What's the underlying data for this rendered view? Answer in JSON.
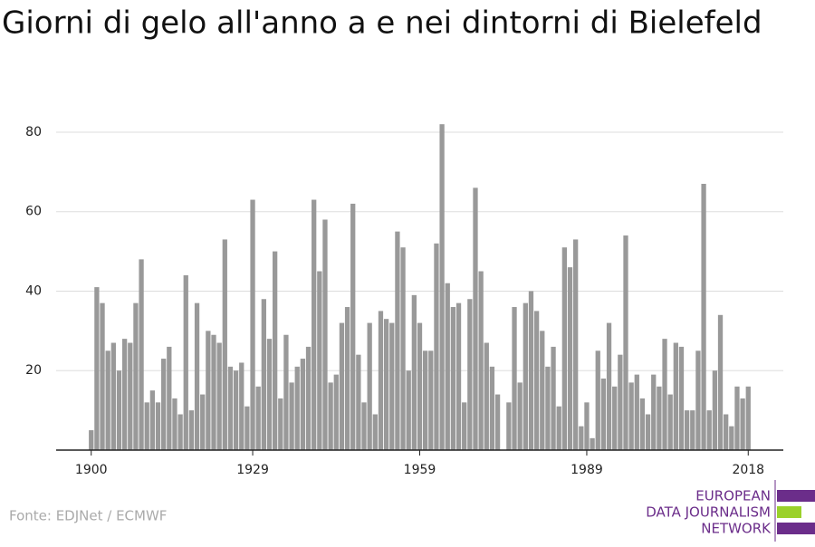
{
  "chart_data": {
    "type": "bar",
    "title": "Giorni di gelo all'anno a e nei dintorni di Bielefeld",
    "source": "Fonte: EDJNet / ECMWF",
    "logo": [
      "EUROPEAN",
      "DATA JOURNALISM",
      "NETWORK"
    ],
    "color": "#999999",
    "x": [
      1900,
      1901,
      1902,
      1903,
      1904,
      1905,
      1906,
      1907,
      1908,
      1909,
      1910,
      1911,
      1912,
      1913,
      1914,
      1915,
      1916,
      1917,
      1918,
      1919,
      1920,
      1921,
      1922,
      1923,
      1924,
      1925,
      1926,
      1927,
      1928,
      1929,
      1930,
      1931,
      1932,
      1933,
      1934,
      1935,
      1936,
      1937,
      1938,
      1939,
      1940,
      1941,
      1942,
      1943,
      1944,
      1945,
      1946,
      1947,
      1948,
      1949,
      1950,
      1951,
      1952,
      1953,
      1954,
      1955,
      1956,
      1957,
      1958,
      1959,
      1960,
      1961,
      1962,
      1963,
      1964,
      1965,
      1966,
      1967,
      1968,
      1969,
      1970,
      1971,
      1972,
      1973,
      1974,
      1975,
      1976,
      1977,
      1978,
      1979,
      1980,
      1981,
      1982,
      1983,
      1984,
      1985,
      1986,
      1987,
      1988,
      1989,
      1990,
      1991,
      1992,
      1993,
      1994,
      1995,
      1996,
      1997,
      1998,
      1999,
      2000,
      2001,
      2002,
      2003,
      2004,
      2005,
      2006,
      2007,
      2008,
      2009,
      2010,
      2011,
      2012,
      2013,
      2014,
      2015,
      2016,
      2017,
      2018
    ],
    "values": [
      5,
      41,
      37,
      25,
      27,
      20,
      28,
      27,
      37,
      48,
      12,
      15,
      12,
      23,
      26,
      13,
      9,
      44,
      10,
      37,
      14,
      30,
      29,
      27,
      53,
      21,
      20,
      22,
      11,
      63,
      16,
      38,
      28,
      50,
      13,
      29,
      17,
      21,
      23,
      26,
      63,
      45,
      58,
      17,
      19,
      32,
      36,
      62,
      24,
      12,
      32,
      9,
      35,
      33,
      32,
      55,
      51,
      20,
      39,
      32,
      25,
      25,
      52,
      82,
      42,
      36,
      37,
      12,
      38,
      66,
      45,
      27,
      21,
      14,
      0,
      12,
      36,
      17,
      37,
      40,
      35,
      30,
      21,
      26,
      11,
      51,
      46,
      53,
      6,
      12,
      3,
      25,
      18,
      32,
      16,
      24,
      54,
      17,
      19,
      13,
      9,
      19,
      16,
      28,
      14,
      27,
      26,
      10,
      10,
      25,
      67,
      10,
      20,
      34,
      9,
      6,
      16,
      13,
      16
    ],
    "xlim": [
      1893.7,
      2024.3
    ],
    "xticks": [
      1900,
      1929,
      1959,
      1989,
      2018
    ],
    "ylim": [
      0,
      85
    ],
    "yticks": [
      20,
      40,
      60,
      80
    ],
    "grid": true
  }
}
